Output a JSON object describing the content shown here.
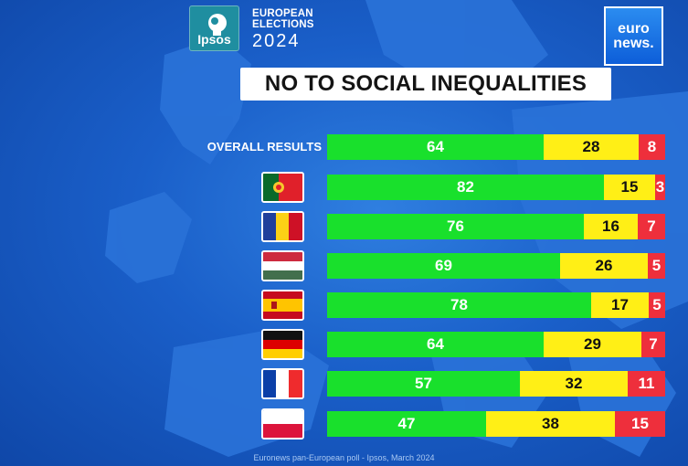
{
  "header": {
    "poll_logo": "Ipsos",
    "event_title_line1": "EUROPEAN",
    "event_title_line2": "ELECTIONS",
    "event_year": "2024",
    "brand_line1": "euro",
    "brand_line2": "news."
  },
  "title": "NO TO SOCIAL INEQUALITIES",
  "footer": "Euronews pan-European poll - Ipsos, March 2024",
  "colors": {
    "yes": "#19e02c",
    "neutral": "#ffef16",
    "no": "#ee2f3c",
    "background": "#1a5fc9"
  },
  "chart_data": {
    "type": "bar",
    "orientation": "horizontal",
    "stacked": true,
    "title": "NO TO SOCIAL INEQUALITIES",
    "categories": [
      "OVERALL RESULTS",
      "Portugal",
      "Romania",
      "Hungary",
      "Spain",
      "Germany",
      "France",
      "Poland"
    ],
    "label_kind": [
      "text",
      "flag",
      "flag",
      "flag",
      "flag",
      "flag",
      "flag",
      "flag"
    ],
    "series": [
      {
        "name": "green",
        "color": "#19e02c",
        "values": [
          64,
          82,
          76,
          69,
          78,
          64,
          57,
          47
        ]
      },
      {
        "name": "yellow",
        "color": "#ffef16",
        "values": [
          28,
          15,
          16,
          26,
          17,
          29,
          32,
          38
        ]
      },
      {
        "name": "red",
        "color": "#ee2f3c",
        "values": [
          8,
          3,
          7,
          5,
          5,
          7,
          11,
          15
        ]
      }
    ],
    "xlim": [
      0,
      100
    ],
    "legend": "none"
  }
}
